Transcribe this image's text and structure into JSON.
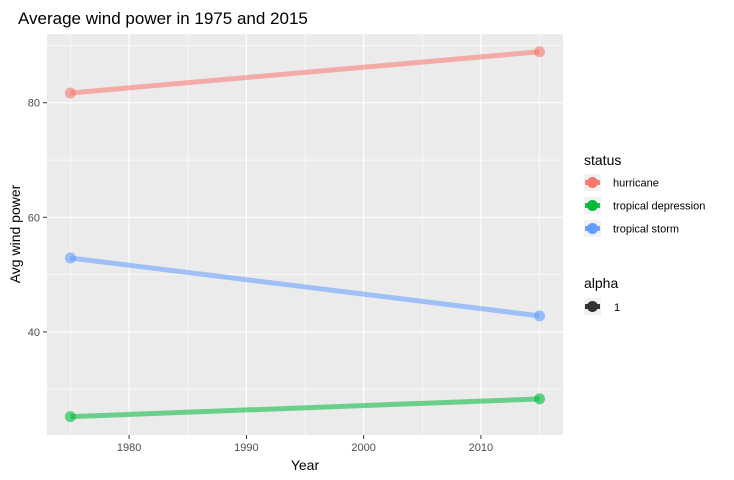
{
  "chart_data": {
    "type": "line",
    "title": "Average wind power in 1975 and 2015",
    "xlabel": "Year",
    "ylabel": "Avg wind power",
    "x": [
      1975,
      2015
    ],
    "xlim": [
      1973,
      2017
    ],
    "ylim": [
      22,
      92
    ],
    "xticks": [
      1980,
      1990,
      2000,
      2010
    ],
    "yticks": [
      40,
      60,
      80
    ],
    "grid": true,
    "legend_position": "right",
    "series": [
      {
        "name": "hurricane",
        "values": [
          81.7,
          88.9
        ],
        "color": "#F8766D"
      },
      {
        "name": "tropical depression",
        "values": [
          25.2,
          28.3
        ],
        "color": "#00BA38"
      },
      {
        "name": "tropical storm",
        "values": [
          52.9,
          42.8
        ],
        "color": "#619CFF"
      }
    ],
    "legend_color_title": "status",
    "legend_alpha_title": "alpha",
    "legend_alpha_label": "1",
    "panel_color": "#EBEBEB",
    "alpha_color": "#333333"
  }
}
